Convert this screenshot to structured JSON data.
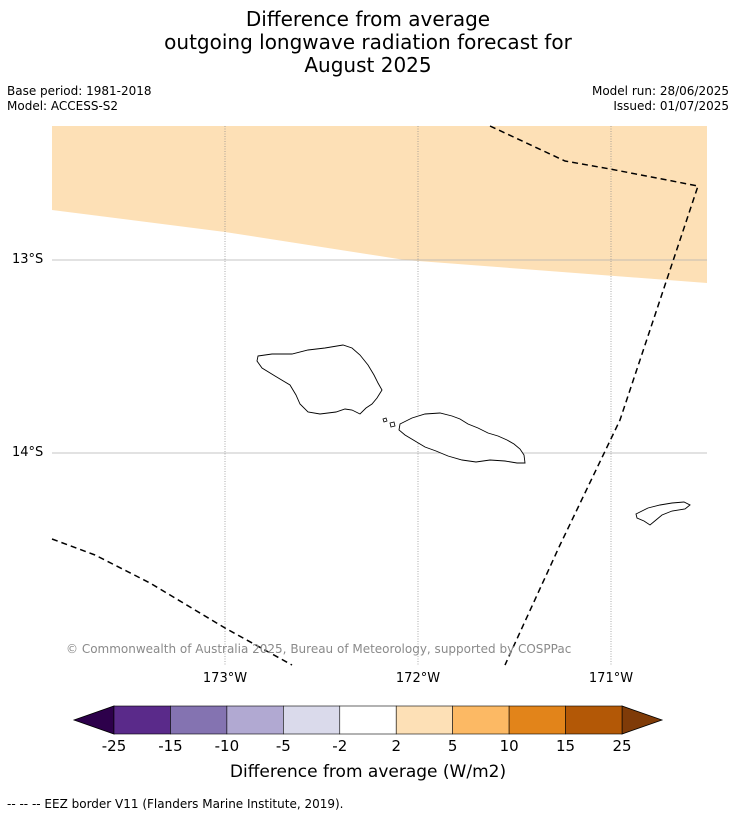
{
  "header": {
    "title_lines": [
      "Difference from average",
      "outgoing longwave radiation forecast for",
      "August 2025"
    ],
    "base_period": "Base period: 1981-2018",
    "model": "Model: ACCESS-S2",
    "model_run": "Model run: 28/06/2025",
    "issued": "Issued: 01/07/2025"
  },
  "map": {
    "lat_labels": [
      {
        "value": -13,
        "label": "13°S"
      },
      {
        "value": -14,
        "label": "14°S"
      }
    ],
    "lon_labels": [
      {
        "value": -173,
        "label": "173°W"
      },
      {
        "value": -172,
        "label": "172°W"
      },
      {
        "value": -171,
        "label": "171°W"
      }
    ],
    "extent": {
      "lon_min": -173.9,
      "lon_max": -170.5,
      "lat_min": -15.06,
      "lat_max": -12.3
    },
    "anomaly_fill_color": "#fde0b6",
    "copyright": "© Commonwealth of Australia 2025, Bureau of Meteorology, supported by COSPPac"
  },
  "colorbar": {
    "label": "Difference from average (W/m2)",
    "ticks": [
      "-25",
      "-15",
      "-10",
      "-5",
      "-2",
      "2",
      "5",
      "10",
      "15",
      "25"
    ],
    "colors": [
      "#5a2a8a",
      "#8473b1",
      "#b1a9d2",
      "#dadaeb",
      "#ffffff",
      "#fde0b6",
      "#fcb964",
      "#e2841a",
      "#b35806"
    ],
    "extend_low_color": "#2d004b",
    "extend_high_color": "#7f3b08"
  },
  "legend_note": "--  --  -- EEZ border V11 (Flanders Marine Institute, 2019)."
}
